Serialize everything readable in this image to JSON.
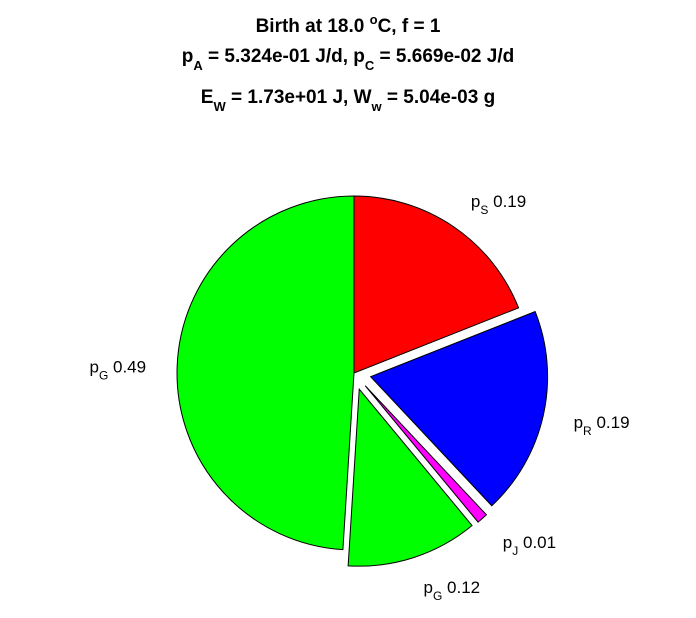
{
  "chart_data": {
    "type": "pie",
    "title": {
      "line1": "Birth at 18.0 °C, f = 1",
      "line1_parts": {
        "pre": "Birth at 18.0 ",
        "sup": "o",
        "post": "C, f = 1"
      },
      "line2_parts": {
        "a_sym": "p",
        "a_sub": "A",
        "a_val": " = 5.324e-01 J/d, ",
        "c_sym": "p",
        "c_sub": "C",
        "c_val": " = 5.669e-02 J/d"
      },
      "line3_parts": {
        "e_sym": "E",
        "e_sub": "W",
        "e_val": " = 1.73e+01 J, ",
        "w_sym": "W",
        "w_sub": "w",
        "w_val": " = 5.04e-03 g"
      }
    },
    "slices": [
      {
        "symbol": "p",
        "sub": "S",
        "value_label": "0.19",
        "value": 0.19,
        "color": "#ff0000",
        "exploded": false
      },
      {
        "symbol": "p",
        "sub": "R",
        "value_label": "0.19",
        "value": 0.19,
        "color": "#0000ff",
        "exploded": true
      },
      {
        "symbol": "p",
        "sub": "J",
        "value_label": "0.01",
        "value": 0.01,
        "color": "#ff00ff",
        "exploded": true
      },
      {
        "symbol": "p",
        "sub": "G",
        "value_label": "0.12",
        "value": 0.12,
        "color": "#00ff00",
        "exploded": true
      },
      {
        "symbol": "p",
        "sub": "G",
        "value_label": "0.49",
        "value": 0.49,
        "color": "#00ff00",
        "exploded": false
      }
    ]
  }
}
